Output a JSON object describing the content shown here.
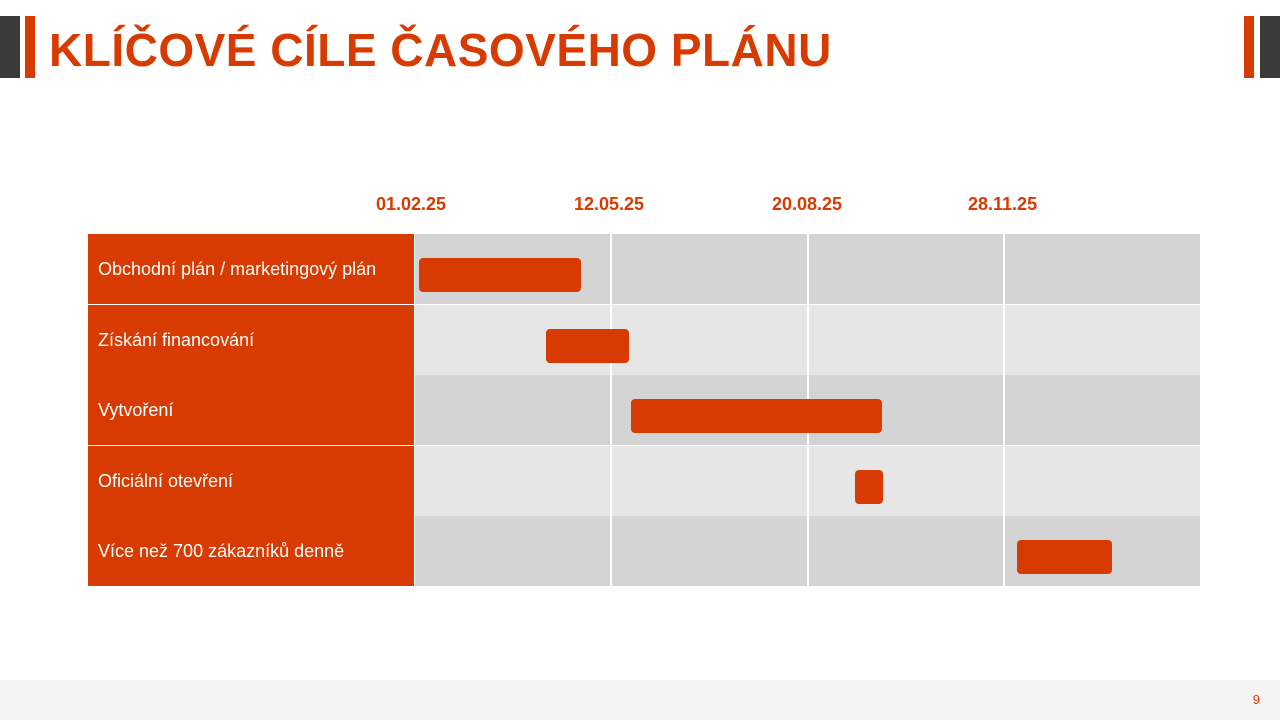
{
  "slide": {
    "title": "KLÍČOVÉ CÍLE ČASOVÉHO PLÁNU",
    "page_number": "9"
  },
  "colors": {
    "accent": "#d83b01",
    "dark_accent": "#3a3a3a",
    "track_dark": "#d4d4d4",
    "track_light": "#e6e6e6"
  },
  "timeline": {
    "dates": [
      "01.02.25",
      "12.05.25",
      "20.08.25",
      "28.11.25"
    ]
  },
  "tasks": [
    {
      "label": "Obchodní plán / marketingový plán",
      "start": "2025-02-03",
      "end": "2025-04-26"
    },
    {
      "label": "Získání financování",
      "start": "2025-04-08",
      "end": "2025-05-20"
    },
    {
      "label": "Vytvoření",
      "start": "2025-05-21",
      "end": "2025-09-25"
    },
    {
      "label": "Oficiální otevření",
      "start": "2025-09-11",
      "end": "2025-09-25"
    },
    {
      "label": "Více než 700 zákazníků denně",
      "start": "2025-12-02",
      "end": "2026-01-19"
    }
  ]
}
